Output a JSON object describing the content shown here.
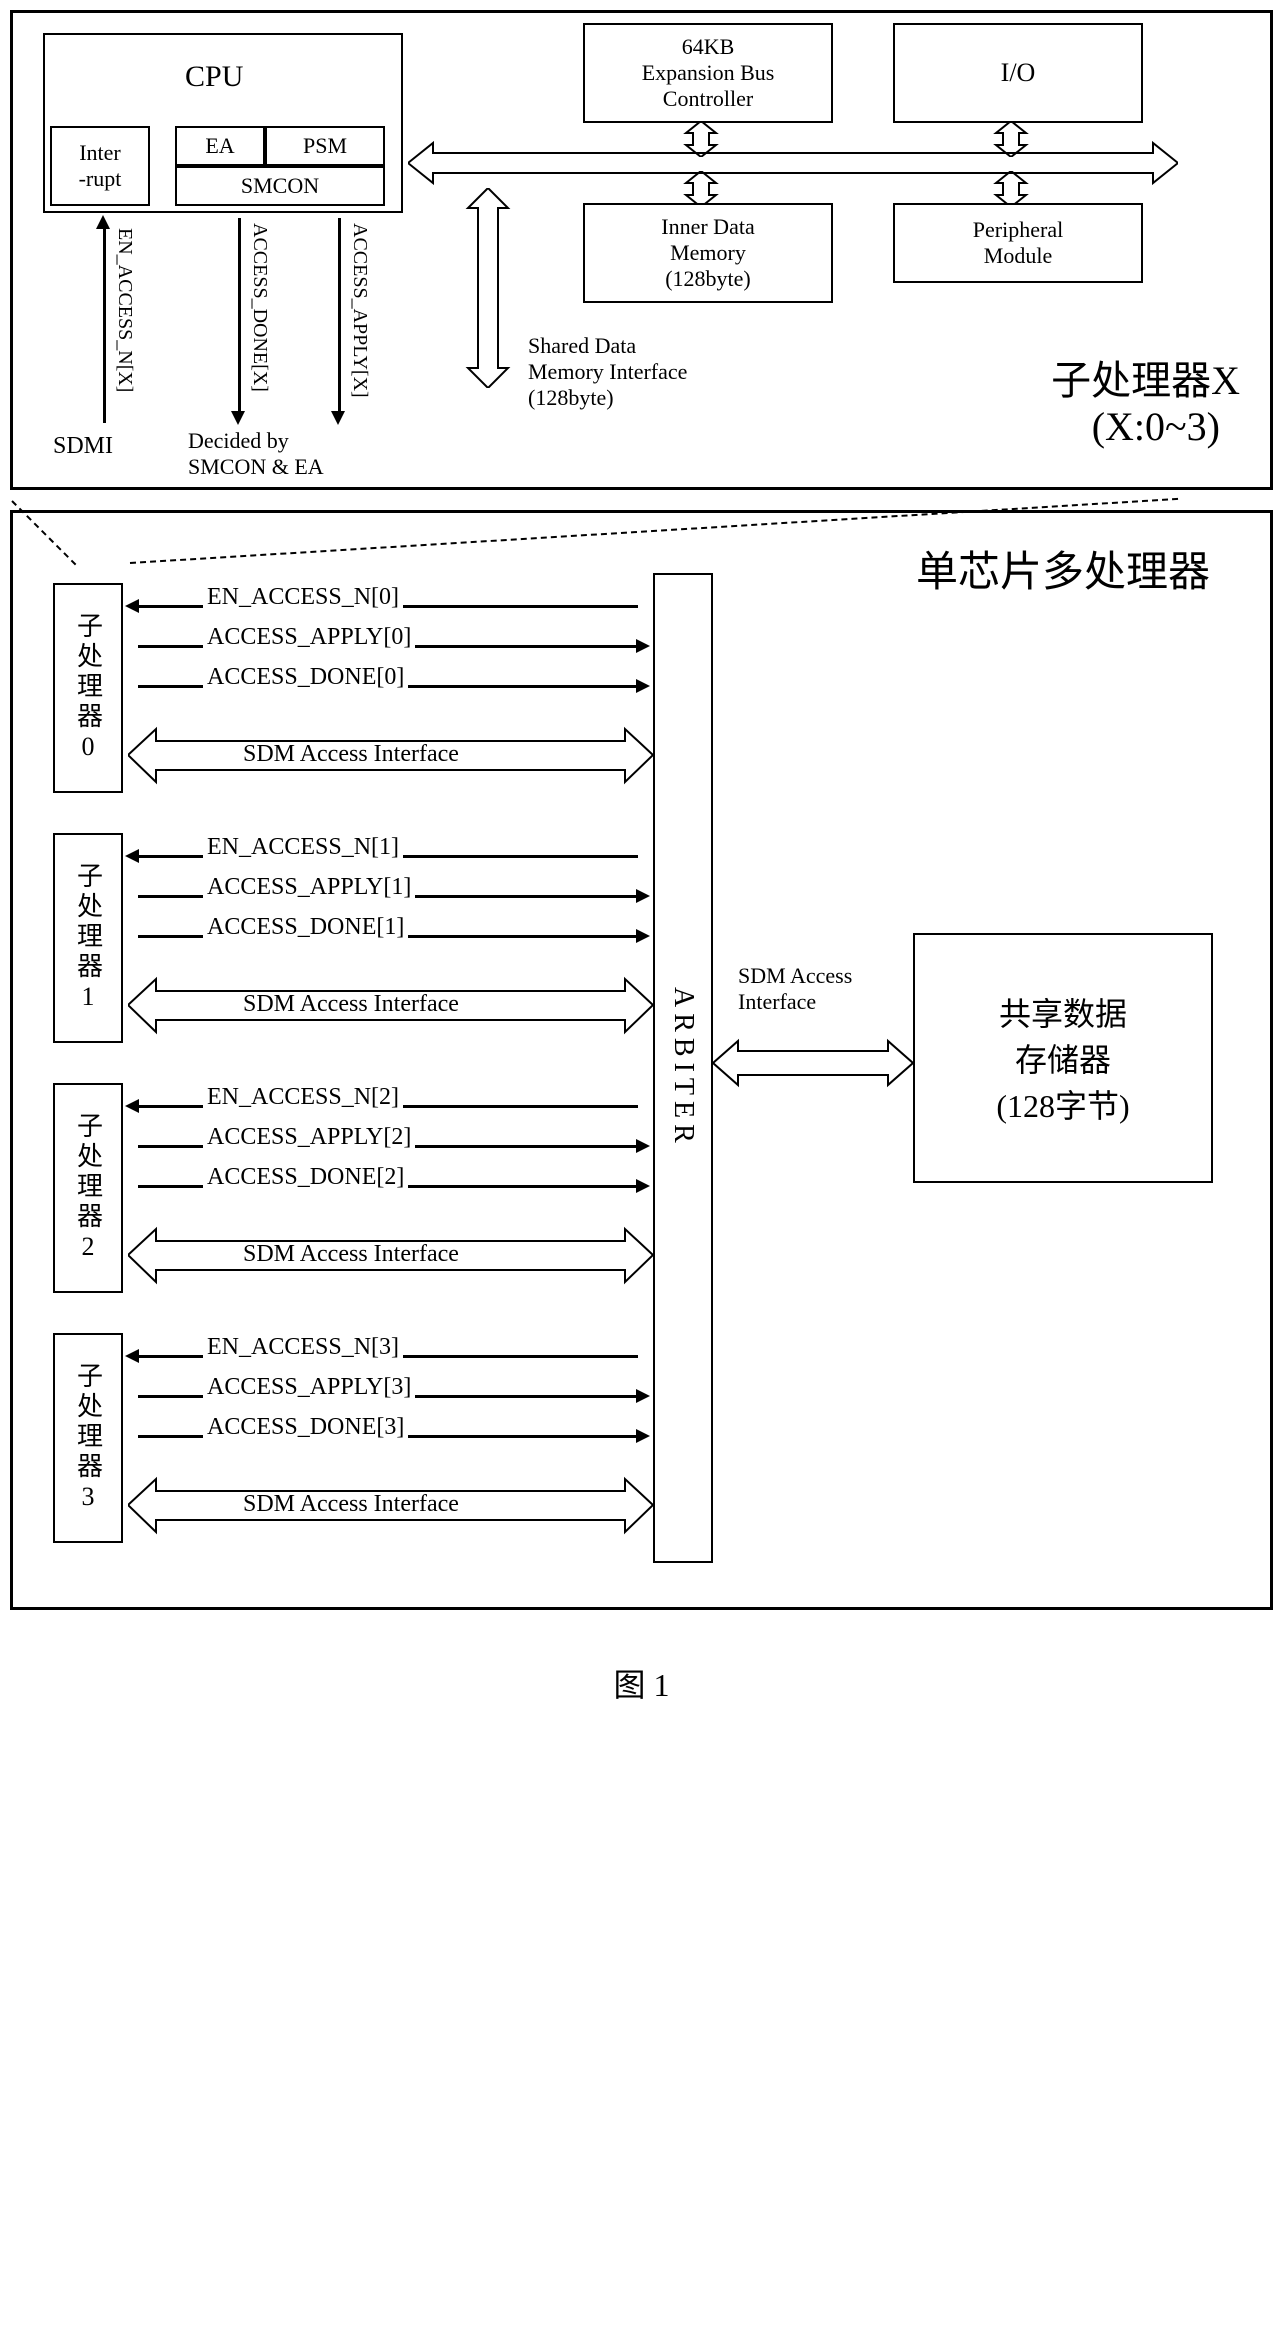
{
  "top": {
    "cpu_label": "CPU",
    "interrupt": "Inter\n-rupt",
    "ea": "EA",
    "psm": "PSM",
    "smcon": "SMCON",
    "ebc": "64KB\nExpansion Bus\nController",
    "io": "I/O",
    "idm": "Inner Data\nMemory\n(128byte)",
    "pm": "Peripheral\nModule",
    "sdmi_label": "Shared Data\nMemory Interface\n(128byte)",
    "sig1": "EN_ACCESS_N[X]",
    "sig2": "ACCESS_DONE[X]",
    "sig3": "ACCESS_APPLY[X]",
    "sdmi": "SDMI",
    "decided": "Decided by\nSMCON & EA",
    "title": "子处理器X",
    "subtitle": "(X:0~3)"
  },
  "bottom": {
    "title": "单芯片多处理器",
    "sub": [
      "子处理器0",
      "子处理器1",
      "子处理器2",
      "子处理器3"
    ],
    "signals": {
      "en": "EN_ACCESS_N",
      "apply": "ACCESS_APPLY",
      "done": "ACCESS_DONE",
      "sdm": "SDM Access Interface"
    },
    "arbiter": "ARBITER",
    "sdm_if": "SDM Access\nInterface",
    "shared_mem": "共享数据\n存储器\n(128字节)"
  },
  "caption": "图 1",
  "colors": {
    "stroke": "#000000",
    "bg": "#ffffff"
  }
}
